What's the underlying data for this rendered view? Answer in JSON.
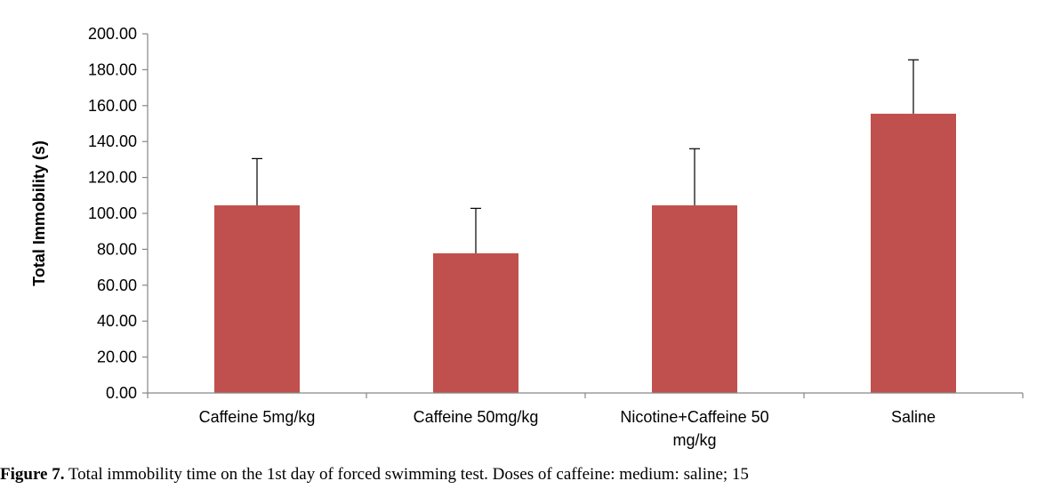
{
  "chart_data": {
    "type": "bar",
    "title": "",
    "xlabel": "",
    "ylabel": "Total Immobility (s)",
    "ylim": [
      0,
      200
    ],
    "ytick_step": 20,
    "ytick_decimals": 2,
    "grid": false,
    "legend": "none",
    "bar_color": "#c0504d",
    "categories": [
      [
        "Caffeine 5mg/kg"
      ],
      [
        "Caffeine 50mg/kg"
      ],
      [
        "Nicotine+Caffeine 50",
        "mg/kg"
      ],
      [
        "Saline"
      ]
    ],
    "values": [
      104.5,
      77.8,
      104.5,
      155.5
    ],
    "error": [
      26.0,
      25.0,
      31.5,
      30.0
    ]
  },
  "caption": {
    "label": "Figure 7.",
    "text": " Total immobility time on the 1st day of forced swimming test. Doses of caffeine: medium: saline; 15"
  }
}
